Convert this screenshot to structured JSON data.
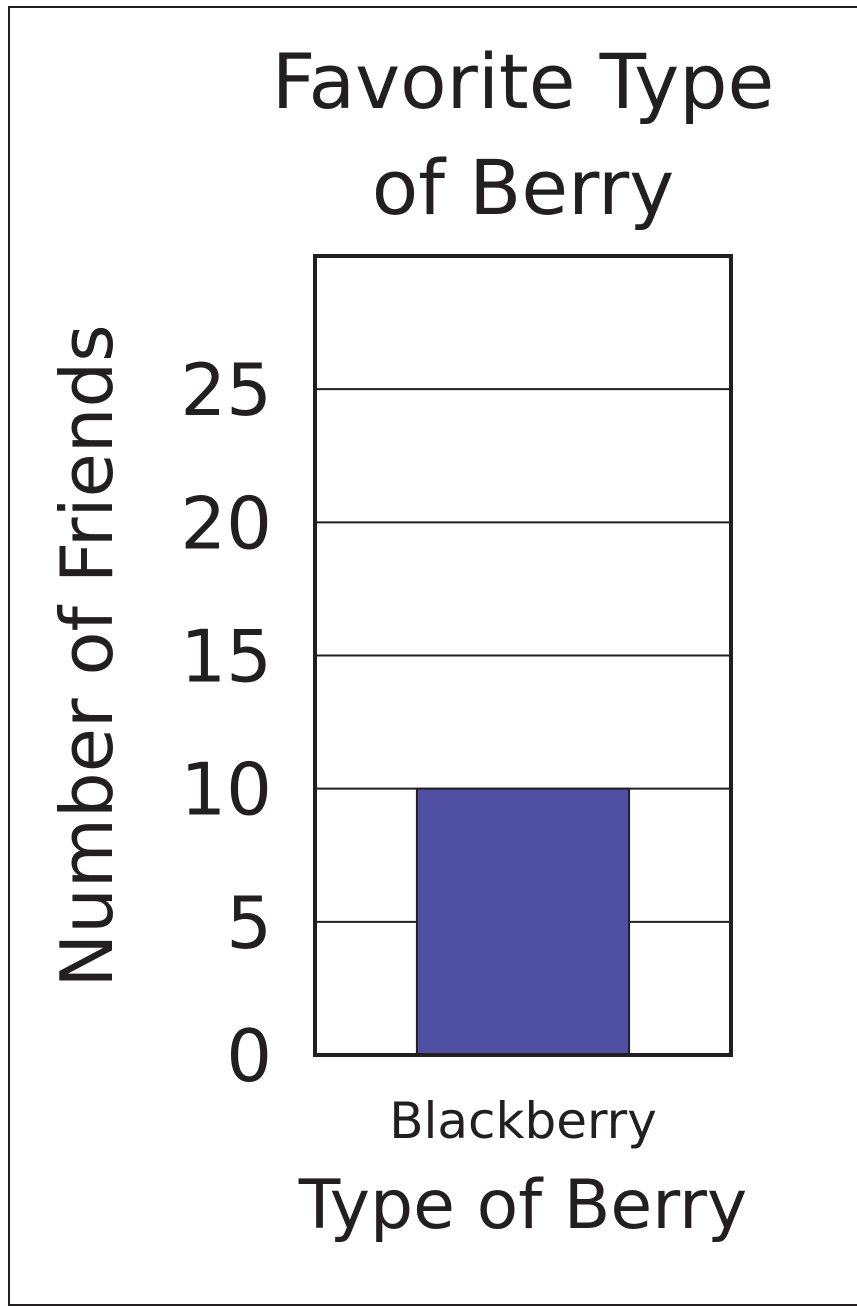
{
  "chart_data": {
    "type": "bar",
    "title_lines": [
      "Favorite Type",
      "of Berry"
    ],
    "xlabel": "Type of Berry",
    "ylabel": "Number of Friends",
    "categories": [
      "Blackberry"
    ],
    "values": [
      10
    ],
    "ylim": [
      0,
      30
    ],
    "yticks": [
      0,
      5,
      10,
      15,
      20,
      25
    ],
    "grid": true,
    "colors": {
      "bar": "#4f50a3",
      "ink": "#231f20"
    }
  }
}
